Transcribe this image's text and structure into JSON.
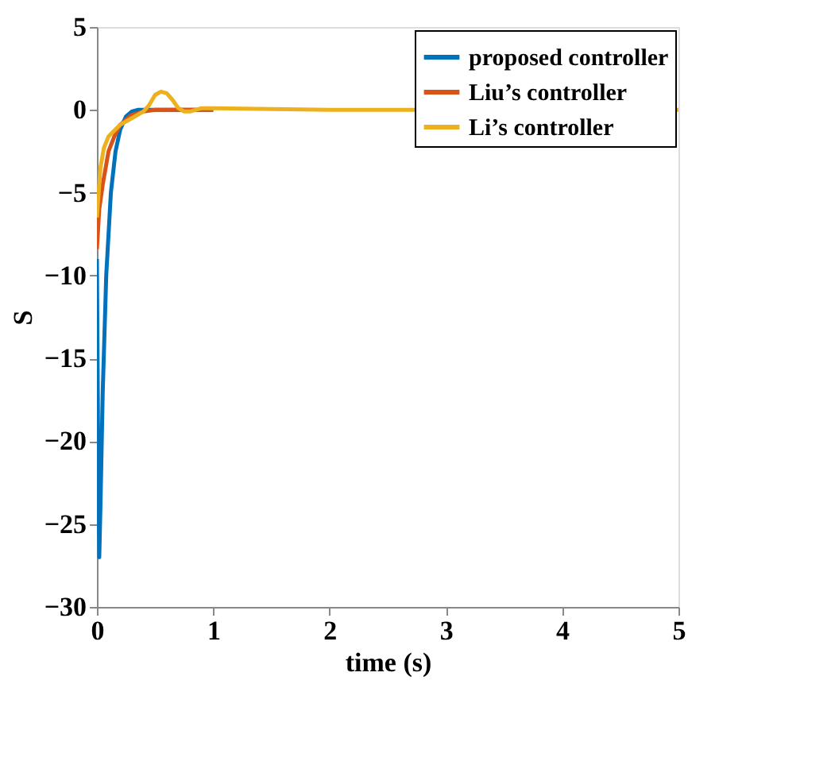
{
  "chart_data": {
    "type": "line",
    "xlabel": "time (s)",
    "ylabel": "S",
    "xlim": [
      0,
      5
    ],
    "ylim": [
      -30,
      5
    ],
    "xticks": [
      0,
      1,
      2,
      3,
      4,
      5
    ],
    "yticks": [
      -30,
      -25,
      -20,
      -15,
      -10,
      -5,
      0,
      5
    ],
    "grid": false,
    "legend": "top right",
    "line_style": "solid",
    "marker": "none",
    "series": [
      {
        "name": "proposed controller",
        "color": "#0072bd",
        "x": [
          0,
          0.01,
          0.02,
          0.03,
          0.05,
          0.08,
          0.12,
          0.16,
          0.2,
          0.25,
          0.3,
          0.35,
          0.5,
          1
        ],
        "values": [
          -9,
          -20,
          -27,
          -24,
          -17,
          -10,
          -5,
          -2.5,
          -1.2,
          -0.4,
          -0.1,
          0,
          0,
          0
        ]
      },
      {
        "name": "Liu’s controller",
        "color": "#d95319",
        "x": [
          0,
          0.02,
          0.05,
          0.1,
          0.15,
          0.2,
          0.3,
          0.4,
          0.5,
          1
        ],
        "values": [
          -8.4,
          -6,
          -4.5,
          -2.5,
          -1.6,
          -0.9,
          -0.3,
          -0.1,
          0,
          0
        ]
      },
      {
        "name": "Li’s controller",
        "color": "#edb120",
        "x": [
          0,
          0.03,
          0.06,
          0.1,
          0.2,
          0.3,
          0.4,
          0.45,
          0.5,
          0.55,
          0.6,
          0.65,
          0.7,
          0.75,
          0.8,
          0.9,
          1,
          2,
          5
        ],
        "values": [
          -6.5,
          -3.5,
          -2.3,
          -1.6,
          -0.9,
          -0.5,
          -0.1,
          0.3,
          0.9,
          1.1,
          1,
          0.6,
          0.1,
          -0.1,
          -0.1,
          0.1,
          0.1,
          0,
          0
        ]
      }
    ]
  }
}
